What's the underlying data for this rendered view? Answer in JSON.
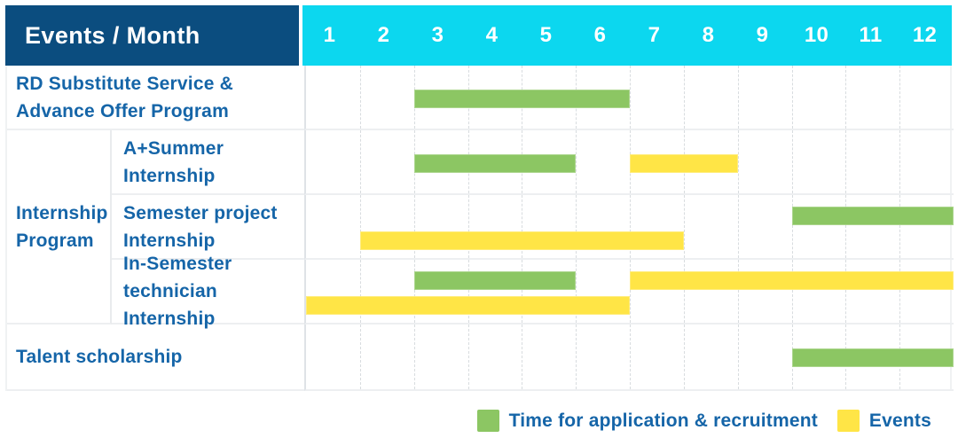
{
  "colors": {
    "header_navy": "#0b4d7f",
    "header_cyan": "#0cd7ef",
    "bar_green": "#8cc663",
    "bar_yellow": "#ffe546",
    "label_blue": "#1565a8"
  },
  "header": {
    "title": "Events / Month",
    "months": [
      "1",
      "2",
      "3",
      "4",
      "5",
      "6",
      "7",
      "8",
      "9",
      "10",
      "11",
      "12"
    ]
  },
  "chart_data": {
    "type": "bar",
    "subtype": "gantt-timeline",
    "title": "Events / Month",
    "x_axis": {
      "unit": "month",
      "range": [
        1,
        12
      ],
      "ticks": [
        "1",
        "2",
        "3",
        "4",
        "5",
        "6",
        "7",
        "8",
        "9",
        "10",
        "11",
        "12"
      ]
    },
    "legend_position": "bottom-right",
    "legend": [
      {
        "name": "application",
        "label": "Time for application & recruitment",
        "color": "#8cc663"
      },
      {
        "name": "events",
        "label": "Events",
        "color": "#ffe546"
      }
    ],
    "rows": [
      {
        "label": "RD Substitute Service &\nAdvance Offer Program",
        "group": "",
        "bars": [
          {
            "series": "Time for application & recruitment",
            "start_month": 3,
            "end_month": 6,
            "lane": "center"
          }
        ]
      },
      {
        "label": "A+Summer\nInternship",
        "group": "Internship\nProgram",
        "bars": [
          {
            "series": "Time for application & recruitment",
            "start_month": 3,
            "end_month": 5,
            "lane": "center"
          },
          {
            "series": "Events",
            "start_month": 7,
            "end_month": 8,
            "lane": "center"
          }
        ]
      },
      {
        "label": "Semester project\nInternship",
        "group": "Internship\nProgram",
        "bars": [
          {
            "series": "Time for application & recruitment",
            "start_month": 10,
            "end_month": 12,
            "lane": "upper"
          },
          {
            "series": "Events",
            "start_month": 2,
            "end_month": 7,
            "lane": "lower"
          }
        ]
      },
      {
        "label": "In-Semester\ntechnician Internship",
        "group": "Internship\nProgram",
        "bars": [
          {
            "series": "Time for application & recruitment",
            "start_month": 3,
            "end_month": 5,
            "lane": "upper"
          },
          {
            "series": "Events",
            "start_month": 7,
            "end_month": 12,
            "lane": "upper"
          },
          {
            "series": "Events",
            "start_month": 1,
            "end_month": 6,
            "lane": "lower"
          }
        ]
      },
      {
        "label": "Talent scholarship",
        "group": "",
        "bars": [
          {
            "series": "Time for application & recruitment",
            "start_month": 10,
            "end_month": 12,
            "lane": "center"
          }
        ]
      }
    ]
  }
}
